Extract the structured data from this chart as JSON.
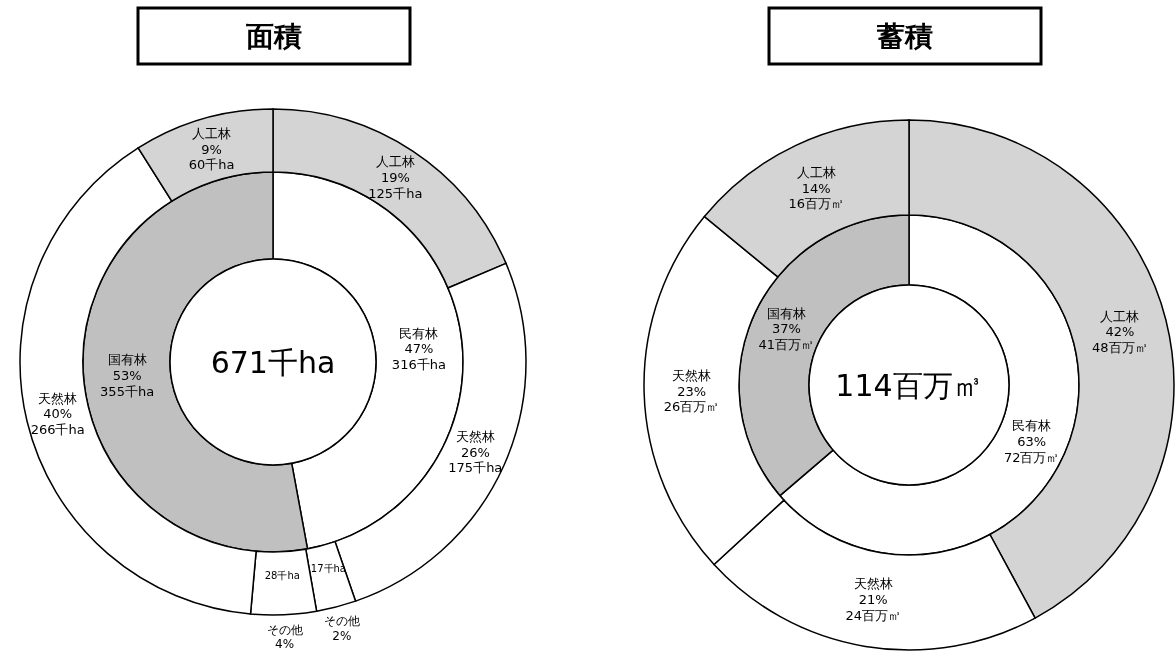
{
  "chart_data": [
    {
      "type": "donut",
      "title": "面積",
      "annotations": [
        "671千ha"
      ],
      "categories": [
        "民有林\n47%",
        "国有林\n53%"
      ],
      "values": [
        316,
        355
      ],
      "colors": [
        "#ffffff",
        "#c0c0c0"
      ],
      "value_labels": [
        "316千ha",
        "355千ha"
      ]
    },
    {
      "type": "donut",
      "categories": [
        "人工林\n19%",
        "天然林\n26%",
        "その他\n2%",
        "その他\n4%",
        "天然林\n40%",
        "人工林\n9%"
      ],
      "values": [
        125,
        175,
        17,
        28,
        266,
        60
      ],
      "colors": [
        "#d4d4d4",
        "#ffffff",
        "#ffffff",
        "#ffffff",
        "#ffffff",
        "#d4d4d4"
      ],
      "value_labels": [
        "125千ha",
        "175千ha",
        "17千ha",
        "28千ha",
        "266千ha",
        "60千ha"
      ]
    },
    {
      "type": "donut",
      "title": "蓄積",
      "annotations": [
        "114百万㎥"
      ],
      "categories": [
        "民有林\n63%",
        "国有林\n37%"
      ],
      "values": [
        72,
        41
      ],
      "colors": [
        "#ffffff",
        "#c0c0c0"
      ],
      "value_labels": [
        "72百万㎥",
        "41百万㎥"
      ]
    },
    {
      "type": "donut",
      "categories": [
        "人工林\n42%",
        "天然林\n21%",
        "天然林\n23%",
        "人工林\n14%"
      ],
      "values": [
        48,
        24,
        26,
        16
      ],
      "colors": [
        "#d4d4d4",
        "#ffffff",
        "#ffffff",
        "#d4d4d4"
      ],
      "value_labels": [
        "48百万㎥",
        "24百万㎥",
        "26百万㎥",
        "16百万㎥"
      ]
    }
  ]
}
